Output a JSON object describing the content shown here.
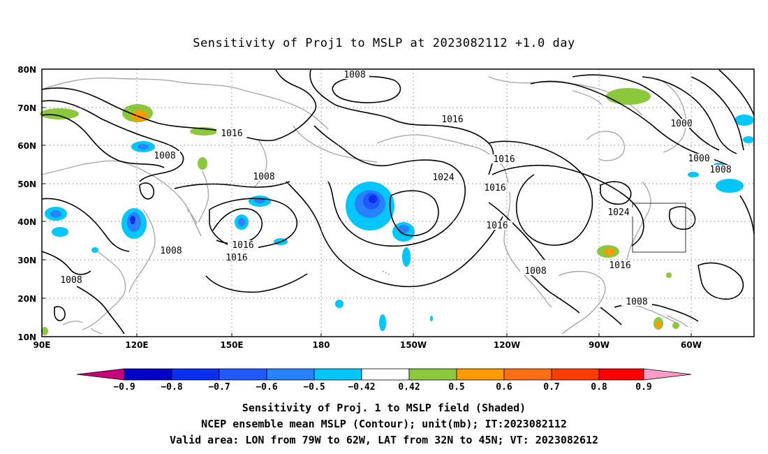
{
  "title": "Sensitivity of Proj1 to MSLP at 2023082112 +1.0 day",
  "lat_labels": [
    "80N",
    "70N",
    "60N",
    "50N",
    "40N",
    "30N",
    "20N",
    "10N"
  ],
  "lon_labels": [
    "90E",
    "120E",
    "150E",
    "180",
    "150W",
    "120W",
    "90W",
    "60W"
  ],
  "contour_labels": [
    "1008",
    "1016",
    "1008",
    "1008",
    "1016",
    "1024",
    "1016",
    "1016",
    "1016",
    "1000",
    "1000",
    "1008",
    "1024",
    "1016",
    "1016",
    "1016",
    "1008",
    "1008",
    "1008",
    "1008"
  ],
  "colorbar": {
    "labels": [
      "−0.9",
      "−0.8",
      "−0.7",
      "−0.6",
      "−0.5",
      "−0.42",
      "0.42",
      "0.5",
      "0.6",
      "0.7",
      "0.8",
      "0.9"
    ],
    "colors": [
      "#c8007a",
      "#0000c8",
      "#0a2ef0",
      "#1e5aff",
      "#2882ff",
      "#00c8ff",
      "#ffffff",
      "#8cc83c",
      "#ff9b00",
      "#ff6e14",
      "#ff3c00",
      "#ff0000",
      "#ff9bc8"
    ]
  },
  "footer": {
    "line1": "Sensitivity of Proj. 1 to MSLP field (Shaded)",
    "line2": "NCEP ensemble mean MSLP (Contour); unit(mb); IT:2023082112",
    "line3": "Valid area: LON from 79W to 62W, LAT from 32N to 45N; VT: 2023082612"
  }
}
